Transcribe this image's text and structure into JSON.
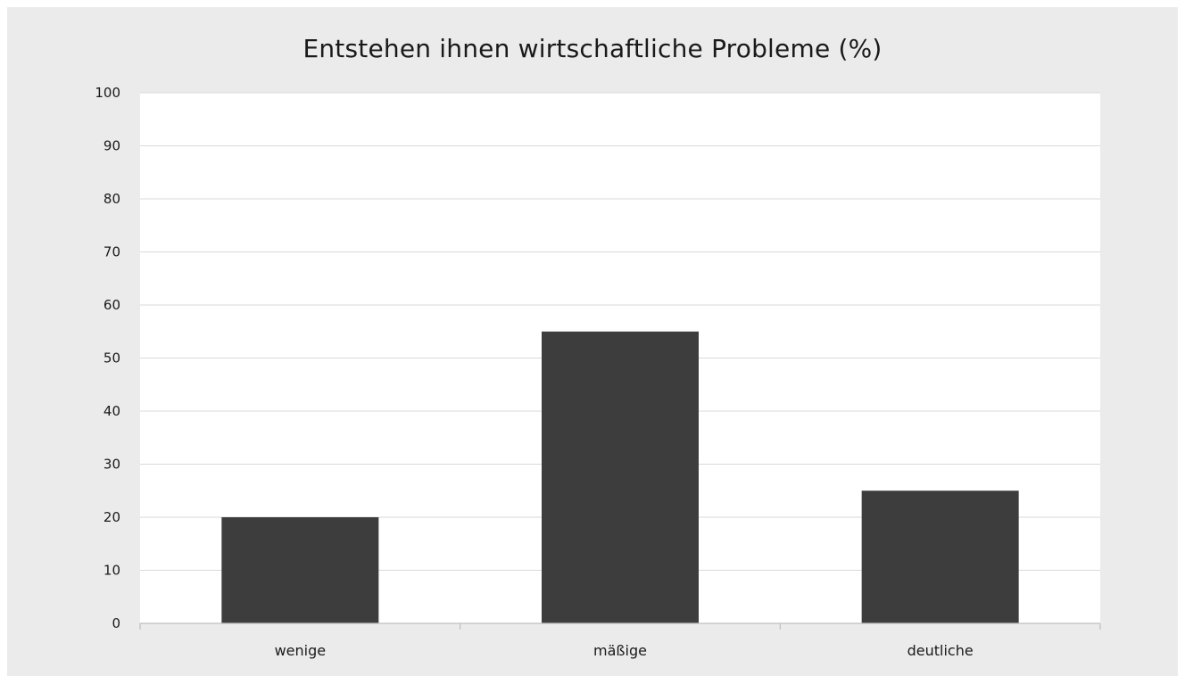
{
  "chart_data": {
    "type": "bar",
    "title": "Entstehen ihnen wirtschaftliche Probleme (%)",
    "xlabel": "",
    "ylabel": "",
    "categories": [
      "wenige",
      "mäßige",
      "deutliche"
    ],
    "values": [
      20,
      55,
      25
    ],
    "ylim": [
      0,
      100
    ],
    "ytick_step": 10,
    "grid": true,
    "legend": "none",
    "colors": {
      "bar": "#3d3d3d",
      "plot_background": "#ffffff",
      "frame_background": "#ebebeb",
      "gridline": "#d9d9d9",
      "axis": "#bfbfbf"
    }
  }
}
